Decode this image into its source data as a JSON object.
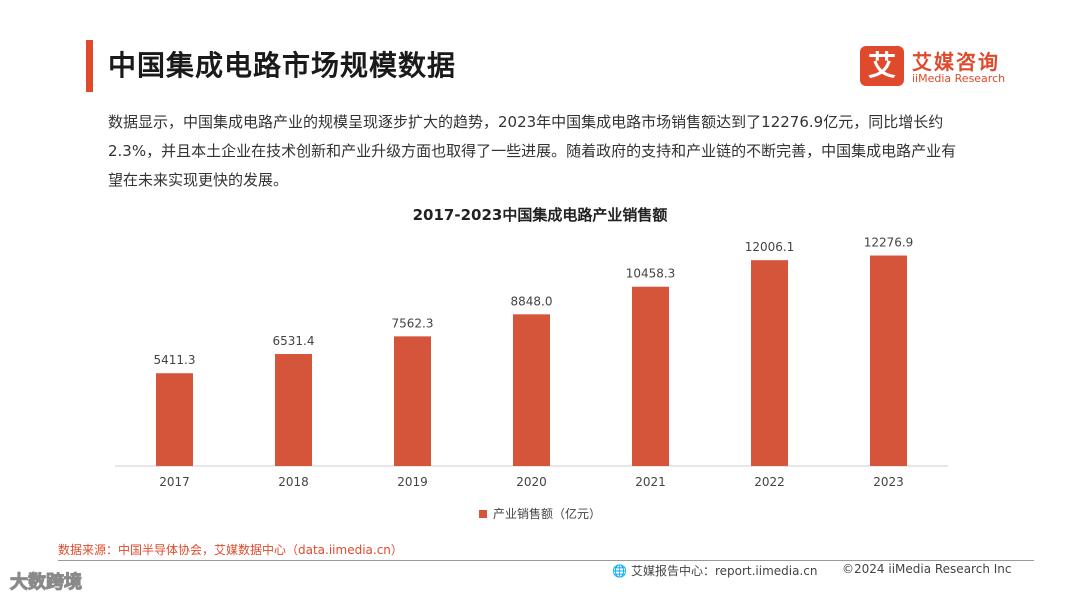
{
  "header": {
    "title": "中国集成电路市场规模数据",
    "accent_color": "#e04a2c"
  },
  "logo": {
    "mark": "艾",
    "name_cn": "艾媒咨询",
    "name_en": "iiMedia Research"
  },
  "description": "数据显示，中国集成电路产业的规模呈现逐步扩大的趋势，2023年中国集成电路市场销售额达到了12276.9亿元，同比增长约2.3%，并且本土企业在技术创新和产业升级方面也取得了一些进展。随着政府的支持和产业链的不断完善，中国集成电路产业有望在未来实现更快的发展。",
  "chart_data": {
    "type": "bar",
    "title": "2017-2023中国集成电路产业销售额",
    "categories": [
      "2017",
      "2018",
      "2019",
      "2020",
      "2021",
      "2022",
      "2023"
    ],
    "series": [
      {
        "name": "产业销售额（亿元）",
        "color": "#d4553a",
        "values": [
          5411.3,
          6531.4,
          7562.3,
          8848.0,
          10458.3,
          12006.1,
          12276.9
        ],
        "labels": [
          "5411.3",
          "6531.4",
          "7562.3",
          "8848.0",
          "10458.3",
          "12006.1",
          "12276.9"
        ]
      }
    ],
    "xlabel": "",
    "ylabel": "",
    "ylim": [
      0,
      14000
    ],
    "grid": false,
    "legend_position": "bottom"
  },
  "footer": {
    "source": "数据来源：中国半导体协会，艾媒数据中心（data.iimedia.cn）",
    "report": "艾媒报告中心：report.iimedia.cn",
    "copyright": "©2024  iiMedia Research  Inc"
  },
  "watermark": "大数跨境"
}
